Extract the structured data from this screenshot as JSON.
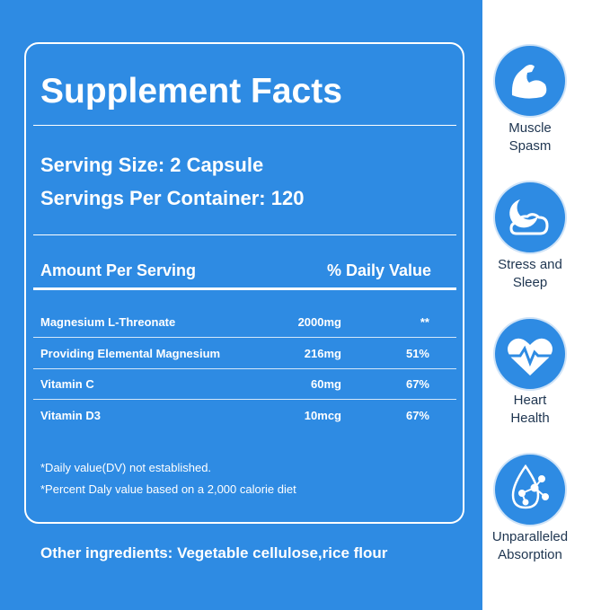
{
  "panel": {
    "title": "Supplement Facts",
    "serving_size": "Serving Size: 2 Capsule",
    "servings_per_container": "Servings Per Container: 120",
    "table": {
      "header": [
        "Amount Per Serving",
        "% Daily Value"
      ],
      "rows": [
        [
          "Magnesium L-Threonate",
          "2000mg",
          "**"
        ],
        [
          "Providing Elemental Magnesium",
          "216mg",
          "51%"
        ],
        [
          "Vitamin C",
          "60mg",
          "67%"
        ],
        [
          "Vitamin D3",
          "10mcg",
          "67%"
        ]
      ]
    },
    "footnotes": [
      "*Daily value(DV) not established.",
      "*Percent Daly value based on a 2,000 calorie diet"
    ]
  },
  "other_ingredients": "Other ingredients: Vegetable cellulose,rice flour",
  "features": [
    {
      "lines": [
        "Muscle",
        "Spasm"
      ]
    },
    {
      "lines": [
        "Stress and",
        "Sleep"
      ]
    },
    {
      "lines": [
        "Heart",
        "Health"
      ]
    },
    {
      "lines": [
        "Unparalleled",
        "Absorption"
      ]
    }
  ]
}
